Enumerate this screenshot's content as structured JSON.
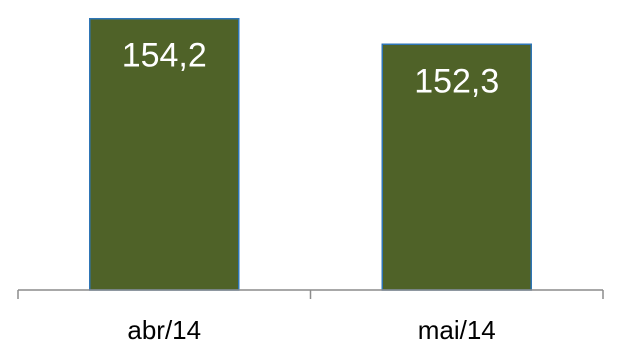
{
  "chart_data": {
    "type": "bar",
    "categories": [
      "abr/14",
      "mai/14"
    ],
    "values": [
      154.2,
      152.3
    ],
    "value_labels": [
      "154,2",
      "152,3"
    ],
    "title": "",
    "xlabel": "",
    "ylabel": "",
    "ylim": [
      134,
      155
    ],
    "grid": false,
    "legend": "none",
    "colors": {
      "bar_fill": "#4f6228",
      "bar_stroke": "#2e75b6",
      "label_text": "#ffffff",
      "axis": "#8c8c8c"
    }
  }
}
